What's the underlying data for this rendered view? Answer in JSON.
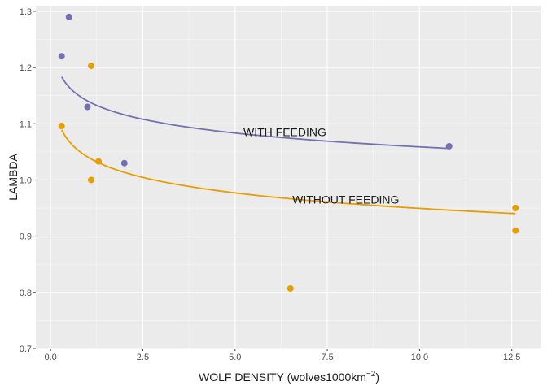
{
  "chart_data": {
    "type": "scatter",
    "xlabel": "WOLF DENSITY (wolves1000km",
    "xlabel_superscript": "−2",
    "xlabel_close": ")",
    "ylabel": "LAMBDA",
    "xlim": [
      -0.4,
      13.3
    ],
    "ylim": [
      0.7,
      1.31
    ],
    "x_ticks": [
      0.0,
      2.5,
      5.0,
      7.5,
      10.0,
      12.5
    ],
    "x_tick_labels": [
      "0.0",
      "2.5",
      "5.0",
      "7.5",
      "10.0",
      "12.5"
    ],
    "y_ticks": [
      0.7,
      0.8,
      0.9,
      1.0,
      1.1,
      1.2,
      1.3
    ],
    "y_tick_labels": [
      "0.7",
      "0.8",
      "0.9",
      "1.0",
      "1.1",
      "1.2",
      "1.3"
    ],
    "grid": true,
    "background": "#ebebeb",
    "series": [
      {
        "name": "WITH FEEDING",
        "color": "#7570b3",
        "points": [
          {
            "x": 0.3,
            "y": 1.22
          },
          {
            "x": 0.5,
            "y": 1.29
          },
          {
            "x": 1.0,
            "y": 1.13
          },
          {
            "x": 2.0,
            "y": 1.03
          },
          {
            "x": 10.8,
            "y": 1.06
          }
        ],
        "fit": {
          "x_from": 0.3,
          "x_to": 10.8,
          "a": 1.1406,
          "b": -0.0355
        }
      },
      {
        "name": "WITHOUT FEEDING",
        "color": "#e69f00",
        "points": [
          {
            "x": 0.3,
            "y": 1.096
          },
          {
            "x": 1.1,
            "y": 1.203
          },
          {
            "x": 1.1,
            "y": 1.0
          },
          {
            "x": 1.3,
            "y": 1.033
          },
          {
            "x": 6.5,
            "y": 0.807
          },
          {
            "x": 12.6,
            "y": 0.95
          },
          {
            "x": 12.6,
            "y": 0.91
          }
        ],
        "fit": {
          "x_from": 0.3,
          "x_to": 12.6,
          "a": 1.0411,
          "b": -0.0398
        }
      }
    ],
    "annotations": [
      {
        "text": "WITH FEEDING",
        "x": 6.35,
        "y": 1.085
      },
      {
        "text": "WITHOUT FEEDING",
        "x": 8.0,
        "y": 0.965
      }
    ]
  }
}
